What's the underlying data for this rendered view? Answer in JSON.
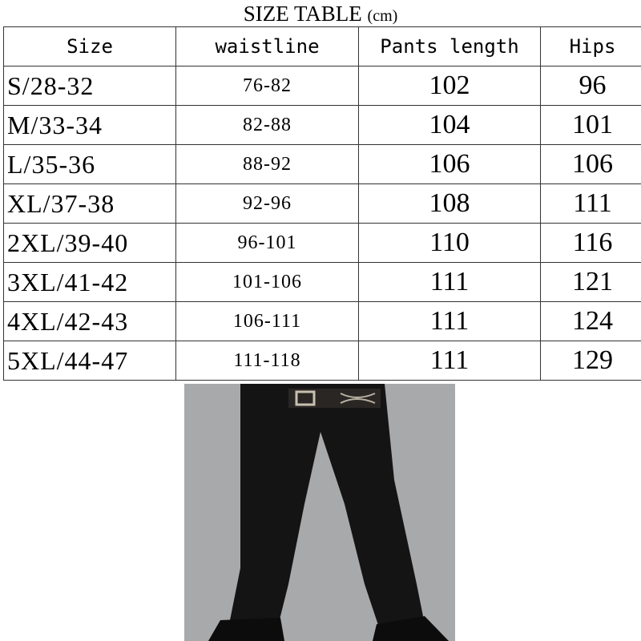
{
  "title": "SIZE  TABLE",
  "unit": "(cm)",
  "columns": [
    "Size",
    "waistline",
    "Pants length",
    "Hips"
  ],
  "rows": [
    {
      "size": "S/28-32",
      "waistline": "76-82",
      "length": "102",
      "hips": "96"
    },
    {
      "size": "M/33-34",
      "waistline": "82-88",
      "length": "104",
      "hips": "101"
    },
    {
      "size": "L/35-36",
      "waistline": "88-92",
      "length": "106",
      "hips": "106"
    },
    {
      "size": "XL/37-38",
      "waistline": "92-96",
      "length": "108",
      "hips": "111"
    },
    {
      "size": "2XL/39-40",
      "waistline": "96-101",
      "length": "110",
      "hips": "116"
    },
    {
      "size": "3XL/41-42",
      "waistline": "101-106",
      "length": "111",
      "hips": "121"
    },
    {
      "size": "4XL/42-43",
      "waistline": "106-111",
      "length": "111",
      "hips": "124"
    },
    {
      "size": "5XL/44-47",
      "waistline": "111-118",
      "length": "111",
      "hips": "129"
    }
  ],
  "photo": {
    "subject": "black-cargo-pants",
    "background": "#a8a9ab",
    "garment": "#111111"
  }
}
